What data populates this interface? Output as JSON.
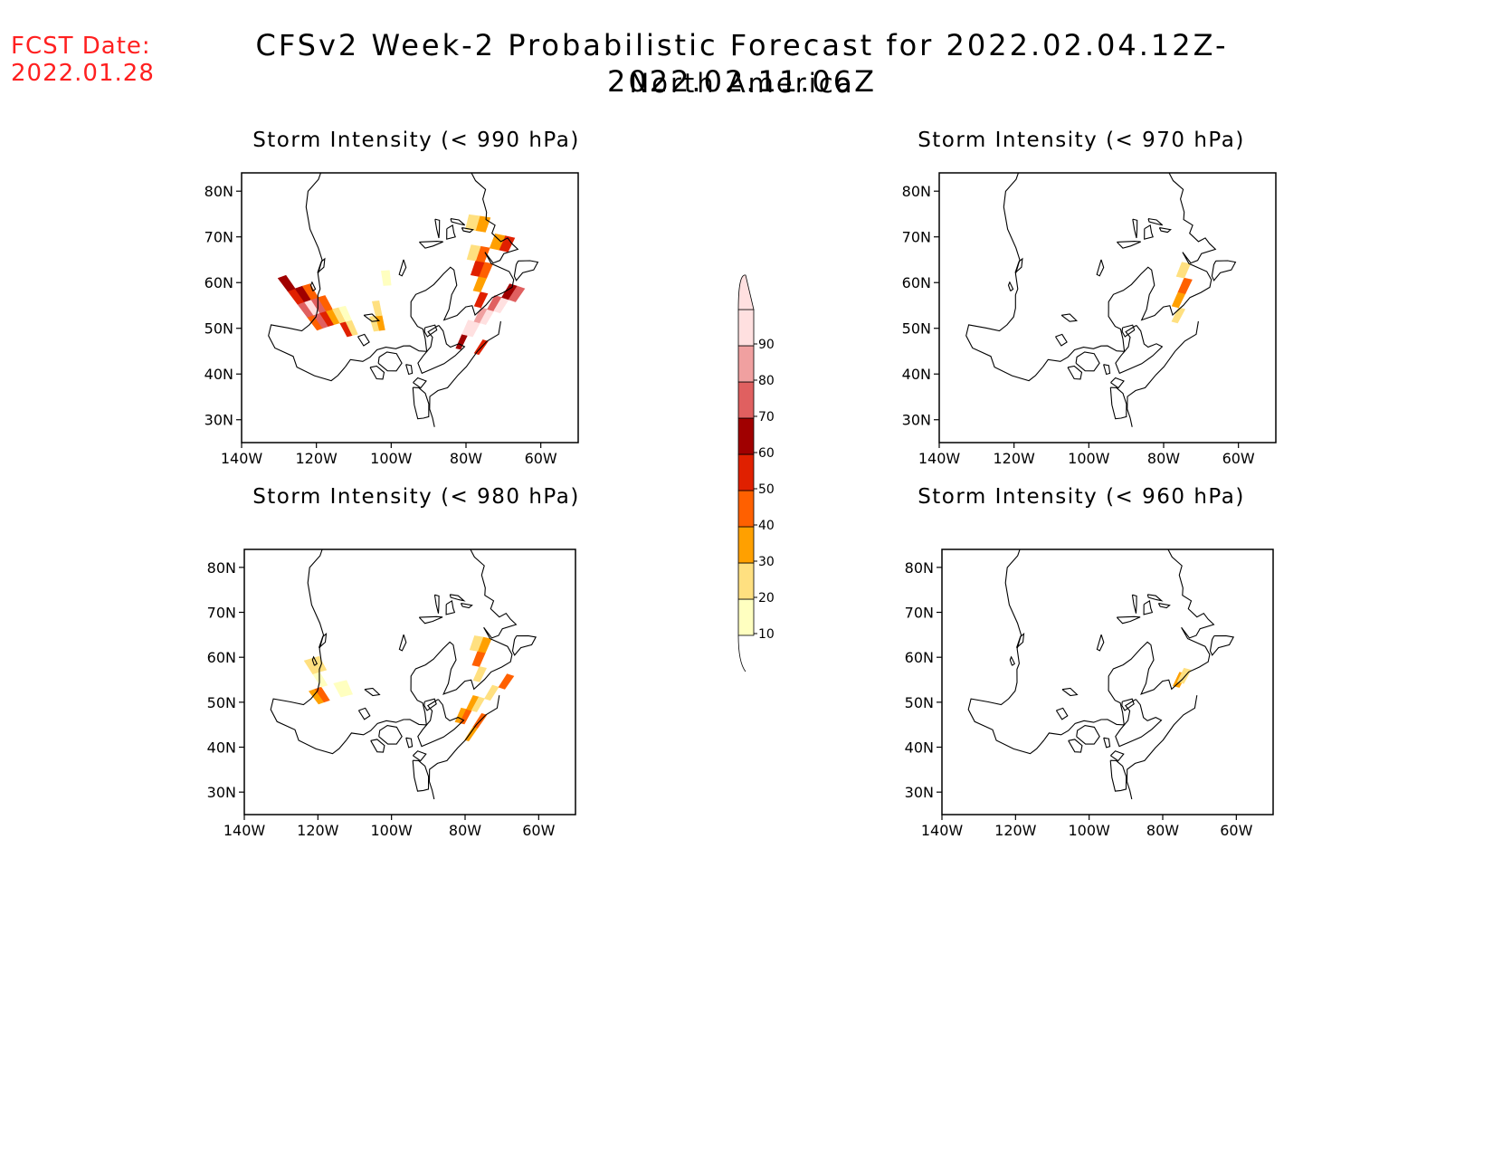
{
  "header": {
    "fcst_label": "FCST Date:",
    "fcst_date": "2022.01.28",
    "title": "CFSv2 Week-2 Probabilistic Forecast for 2022.02.04.12Z-2022.02.11.06Z",
    "subtitle": "North America"
  },
  "map_axes": {
    "lat_labels": [
      "80N",
      "70N",
      "60N",
      "50N",
      "40N",
      "30N"
    ],
    "lat_values": [
      80,
      70,
      60,
      50,
      40,
      30
    ],
    "lon_labels": [
      "140W",
      "120W",
      "100W",
      "80W",
      "60W"
    ],
    "lon_values": [
      -140,
      -120,
      -100,
      -80,
      -60
    ],
    "lon_range": [
      -140,
      -50
    ],
    "lat_range": [
      25,
      85
    ]
  },
  "panels": [
    {
      "id": "p990",
      "title": "Storm Intensity (< 990 hPa)",
      "prob_cells": [
        [
          -140,
          60,
          40
        ],
        [
          -140,
          57,
          70
        ],
        [
          -140,
          54,
          50
        ],
        [
          -140,
          51,
          60
        ],
        [
          -137,
          60,
          70
        ],
        [
          -137,
          57,
          90
        ],
        [
          -137,
          54,
          60
        ],
        [
          -134,
          60,
          50
        ],
        [
          -134,
          57,
          70
        ],
        [
          -134,
          54,
          40
        ],
        [
          -131,
          60,
          30
        ],
        [
          -131,
          57,
          40
        ],
        [
          -128,
          63,
          50
        ],
        [
          -128,
          60,
          20
        ],
        [
          -125,
          63,
          20
        ],
        [
          -125,
          60,
          10
        ],
        [
          -113,
          63,
          20
        ],
        [
          -110,
          63,
          30
        ],
        [
          -110,
          60,
          20
        ],
        [
          -104,
          54,
          10
        ],
        [
          -65,
          66,
          60
        ],
        [
          -65,
          63,
          90
        ],
        [
          -62,
          63,
          90
        ],
        [
          -62,
          60,
          80
        ],
        [
          -59,
          60,
          90
        ],
        [
          -59,
          57,
          70
        ],
        [
          -56,
          57,
          90
        ],
        [
          -56,
          54,
          60
        ],
        [
          -53,
          66,
          50
        ],
        [
          -53,
          54,
          70
        ],
        [
          -65,
          57,
          50
        ],
        [
          -68,
          54,
          30
        ],
        [
          -68,
          51,
          40
        ],
        [
          -71,
          51,
          50
        ],
        [
          -71,
          48,
          40
        ],
        [
          -74,
          48,
          20
        ],
        [
          -65,
          45,
          50
        ],
        [
          -68,
          45,
          30
        ],
        [
          -74,
          42,
          30
        ],
        [
          -77,
          42,
          20
        ]
      ]
    },
    {
      "id": "p970",
      "title": "Storm Intensity (< 970 hPa)",
      "prob_cells": [
        [
          -62,
          60,
          20
        ],
        [
          -65,
          57,
          30
        ],
        [
          -65,
          54,
          40
        ],
        [
          -68,
          51,
          20
        ]
      ]
    },
    {
      "id": "p980",
      "title": "Storm Intensity (< 980 hPa)",
      "prob_cells": [
        [
          -140,
          60,
          30
        ],
        [
          -137,
          60,
          40
        ],
        [
          -134,
          57,
          10
        ],
        [
          -134,
          54,
          20
        ],
        [
          -131,
          54,
          20
        ],
        [
          -128,
          60,
          10
        ],
        [
          -125,
          60,
          10
        ],
        [
          -65,
          66,
          30
        ],
        [
          -62,
          66,
          40
        ],
        [
          -62,
          63,
          30
        ],
        [
          -59,
          63,
          20
        ],
        [
          -56,
          60,
          20
        ],
        [
          -53,
          57,
          40
        ],
        [
          -53,
          69,
          30
        ],
        [
          -53,
          66,
          40
        ],
        [
          -65,
          57,
          20
        ],
        [
          -68,
          54,
          40
        ],
        [
          -68,
          51,
          30
        ],
        [
          -71,
          51,
          20
        ]
      ]
    },
    {
      "id": "p960",
      "title": "Storm Intensity (< 960 hPa)",
      "prob_cells": [
        [
          -63,
          58,
          30
        ],
        [
          -62,
          57,
          20
        ]
      ]
    }
  ],
  "colorbar": {
    "levels": [
      "10",
      "20",
      "30",
      "40",
      "50",
      "60",
      "70",
      "80",
      "90"
    ],
    "colors": [
      "#ffffc0",
      "#ffe080",
      "#ffa000",
      "#ff6000",
      "#e02000",
      "#a00000",
      "#e06060",
      "#f0a0a0",
      "#ffe0e0"
    ]
  }
}
